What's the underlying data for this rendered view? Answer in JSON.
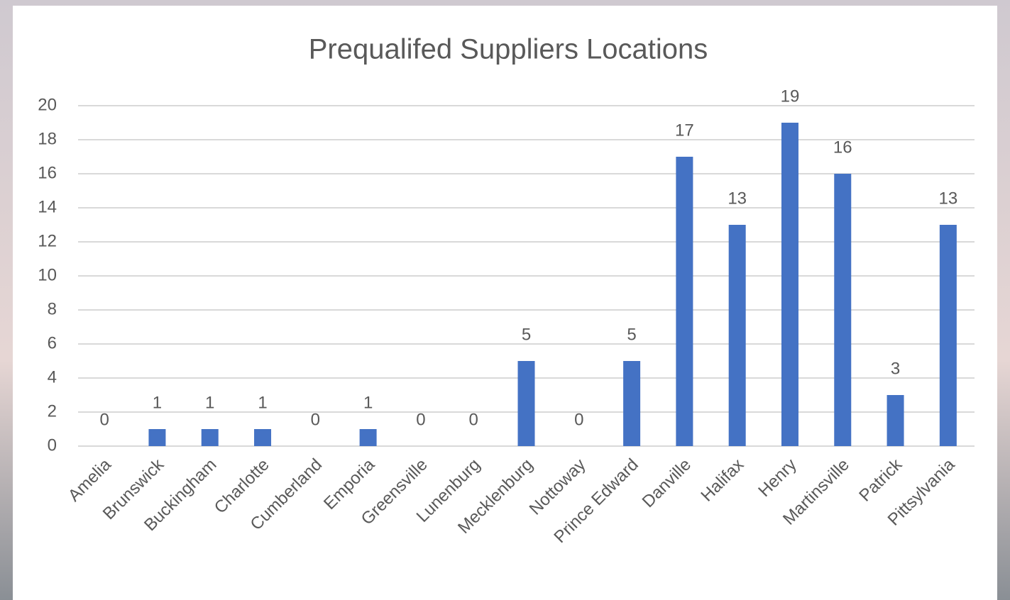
{
  "chart_data": {
    "type": "bar",
    "title": "Prequalifed Suppliers Locations",
    "categories": [
      "Amelia",
      "Brunswick",
      "Buckingham",
      "Charlotte",
      "Cumberland",
      "Emporia",
      "Greensville",
      "Lunenburg",
      "Mecklenburg",
      "Nottoway",
      "Prince Edward",
      "Danville",
      "Halifax",
      "Henry",
      "Martinsville",
      "Patrick",
      "Pittsylvania"
    ],
    "values": [
      0,
      1,
      1,
      1,
      0,
      1,
      0,
      0,
      5,
      0,
      5,
      17,
      13,
      19,
      16,
      3,
      13
    ],
    "color": "#4472c4",
    "ylim": [
      0,
      20
    ],
    "yticks": [
      0,
      2,
      4,
      6,
      8,
      10,
      12,
      14,
      16,
      18,
      20
    ],
    "grid": true
  }
}
